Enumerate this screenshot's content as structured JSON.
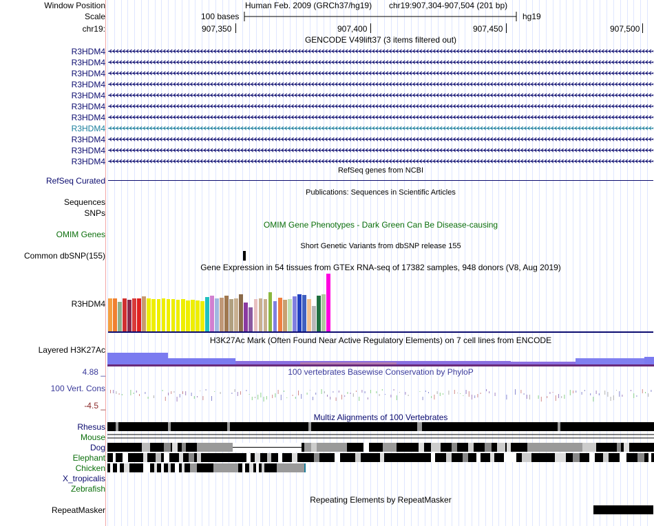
{
  "labels": {
    "window_position": "Window Position",
    "scale": "Scale",
    "chrom": "chr19:",
    "refseq_curated": "RefSeq Curated",
    "sequences": "Sequences",
    "snps": "SNPs",
    "omim_genes": "OMIM Genes",
    "common_dbsnp": "Common dbSNP(155)",
    "gtex_gene": "R3HDM4",
    "layered": "Layered H3K27Ac",
    "cons_label": "100 Vert. Cons",
    "cons_max": "4.88 _",
    "cons_min": "-4.5 _",
    "repeatmasker": "RepeatMasker"
  },
  "header": {
    "assembly": "Human Feb. 2009 (GRCh37/hg19)",
    "position": "chr19:907,304-907,504 (201 bp)",
    "scale_text": "100 bases",
    "scale_db": "hg19",
    "ticks": [
      "907,350",
      "907,400",
      "907,450",
      "907,500"
    ]
  },
  "tracks": {
    "gencode_title": "GENCODE V49lift37 (3 items filtered out)",
    "refseq_title": "RefSeq genes from NCBI",
    "pubs_title": "Publications: Sequences in Scientific Articles",
    "omim_title": "OMIM Gene Phenotypes - Dark Green Can Be Disease-causing",
    "dbsnp_title": "Short Genetic Variants from dbSNP release 155",
    "gtex_title": "Gene Expression in 54 tissues from GTEx RNA-seq of 17382 samples, 948 donors (V8, Aug 2019)",
    "h3k27_title": "H3K27Ac Mark (Often Found Near Active Regulatory Elements) on 7 cell lines from ENCODE",
    "cons_title": "100 vertebrates Basewise Conservation by PhyloP",
    "multiz_title": "Multiz Alignments of 100 Vertebrates",
    "repeat_title": "Repeating Elements by RepeatMasker"
  },
  "gencode_rows": [
    {
      "label": "R3HDM4",
      "highlight": false
    },
    {
      "label": "R3HDM4",
      "highlight": false
    },
    {
      "label": "R3HDM4",
      "highlight": false
    },
    {
      "label": "R3HDM4",
      "highlight": false
    },
    {
      "label": "R3HDM4",
      "highlight": false
    },
    {
      "label": "R3HDM4",
      "highlight": false
    },
    {
      "label": "R3HDM4",
      "highlight": false
    },
    {
      "label": "R3HDM4",
      "highlight": true
    },
    {
      "label": "R3HDM4",
      "highlight": false
    },
    {
      "label": "R3HDM4",
      "highlight": false
    },
    {
      "label": "R3HDM4",
      "highlight": false
    }
  ],
  "species": [
    {
      "name": "Rhesus",
      "color": "#0a0a6e"
    },
    {
      "name": "Mouse",
      "color": "#0a6e0a"
    },
    {
      "name": "Dog",
      "color": "#0a0a6e"
    },
    {
      "name": "Elephant",
      "color": "#0a6e0a"
    },
    {
      "name": "Chicken",
      "color": "#0a6e0a"
    },
    {
      "name": "X_tropicalis",
      "color": "#0a0a6e"
    },
    {
      "name": "Zebrafish",
      "color": "#0a6e0a"
    }
  ],
  "gtex_bars": [
    {
      "v": 49,
      "c": "#f5a040"
    },
    {
      "v": 49,
      "c": "#f08030"
    },
    {
      "v": 44,
      "c": "#8fb08a"
    },
    {
      "v": 49,
      "c": "#d03030"
    },
    {
      "v": 47,
      "c": "#8b2a4a"
    },
    {
      "v": 49,
      "c": "#d83a3a"
    },
    {
      "v": 49,
      "c": "#e02020"
    },
    {
      "v": 52,
      "c": "#c89a70"
    },
    {
      "v": 49,
      "c": "#eeee00"
    },
    {
      "v": 48,
      "c": "#eeee00"
    },
    {
      "v": 48,
      "c": "#eeee00"
    },
    {
      "v": 49,
      "c": "#eeee00"
    },
    {
      "v": 48,
      "c": "#eeee00"
    },
    {
      "v": 48,
      "c": "#eeee00"
    },
    {
      "v": 47,
      "c": "#eeee00"
    },
    {
      "v": 48,
      "c": "#eeee00"
    },
    {
      "v": 46,
      "c": "#eeee00"
    },
    {
      "v": 47,
      "c": "#eeee00"
    },
    {
      "v": 46,
      "c": "#eeee00"
    },
    {
      "v": 45,
      "c": "#eeee00"
    },
    {
      "v": 51,
      "c": "#20c0c0"
    },
    {
      "v": 53,
      "c": "#d080d0"
    },
    {
      "v": 49,
      "c": "#a0b8e0"
    },
    {
      "v": 50,
      "c": "#c09878"
    },
    {
      "v": 53,
      "c": "#a07850"
    },
    {
      "v": 48,
      "c": "#b0a080"
    },
    {
      "v": 49,
      "c": "#c8b090"
    },
    {
      "v": 55,
      "c": "#8a6a4a"
    },
    {
      "v": 43,
      "c": "#8a3aa0"
    },
    {
      "v": 36,
      "c": "#8a5aa0"
    },
    {
      "v": 48,
      "c": "#e8c0c0"
    },
    {
      "v": 49,
      "c": "#c8b090"
    },
    {
      "v": 48,
      "c": "#c8b090"
    },
    {
      "v": 58,
      "c": "#8ab840"
    },
    {
      "v": 45,
      "c": "#8080e0"
    },
    {
      "v": 50,
      "c": "#f08040"
    },
    {
      "v": 47,
      "c": "#c8a070"
    },
    {
      "v": 48,
      "c": "#c0e0b0"
    },
    {
      "v": 52,
      "c": "#8080e0"
    },
    {
      "v": 55,
      "c": "#2040c0"
    },
    {
      "v": 54,
      "c": "#4060c0"
    },
    {
      "v": 48,
      "c": "#f0c090"
    },
    {
      "v": 38,
      "c": "#b8b8b8"
    },
    {
      "v": 53,
      "c": "#207040"
    },
    {
      "v": 55,
      "c": "#b0c8a0"
    },
    {
      "v": 85,
      "c": "#ff00e0"
    }
  ],
  "colors": {
    "navy": "#0a0a6e",
    "highlight": "#1a7e9c",
    "h3k27": "#6a6ae6",
    "cons_max": "#3a3a9a",
    "cons_min": "#8a2a2a"
  }
}
